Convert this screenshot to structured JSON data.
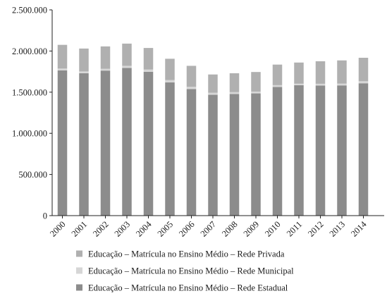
{
  "chart_data": {
    "type": "bar",
    "stacked": true,
    "categories": [
      "2000",
      "2001",
      "2002",
      "2003",
      "2004",
      "2005",
      "2006",
      "2007",
      "2008",
      "2009",
      "2010",
      "2011",
      "2012",
      "2013",
      "2014"
    ],
    "series": [
      {
        "name": "Educação – Matrícula no Ensino Médio – Rede Estadual",
        "color": "#8c8c8c",
        "values": [
          1765000,
          1730000,
          1762000,
          1795000,
          1747000,
          1618000,
          1537000,
          1468000,
          1478000,
          1485000,
          1563000,
          1585000,
          1580000,
          1582000,
          1608000
        ]
      },
      {
        "name": "Educação – Matrícula no Ensino Médio – Rede Municipal",
        "color": "#d6d6d6",
        "values": [
          22000,
          22000,
          22000,
          25000,
          28000,
          30000,
          28000,
          25000,
          22000,
          22000,
          22000,
          18000,
          22000,
          22000,
          25000
        ]
      },
      {
        "name": "Educação – Matrícula no Ensino Médio – Rede Privada",
        "color": "#b0b0b0",
        "values": [
          288000,
          278000,
          272000,
          270000,
          262000,
          258000,
          255000,
          222000,
          230000,
          238000,
          250000,
          257000,
          274000,
          282000,
          285000
        ]
      }
    ],
    "yticks": [
      "2.500.000",
      "2.000.000",
      "1.500.000",
      "1.000.000",
      "500.000",
      "0"
    ],
    "ylim": [
      0,
      2500000
    ],
    "legend_position": "bottom",
    "legend_order": [
      2,
      1,
      0
    ],
    "grid": false
  }
}
